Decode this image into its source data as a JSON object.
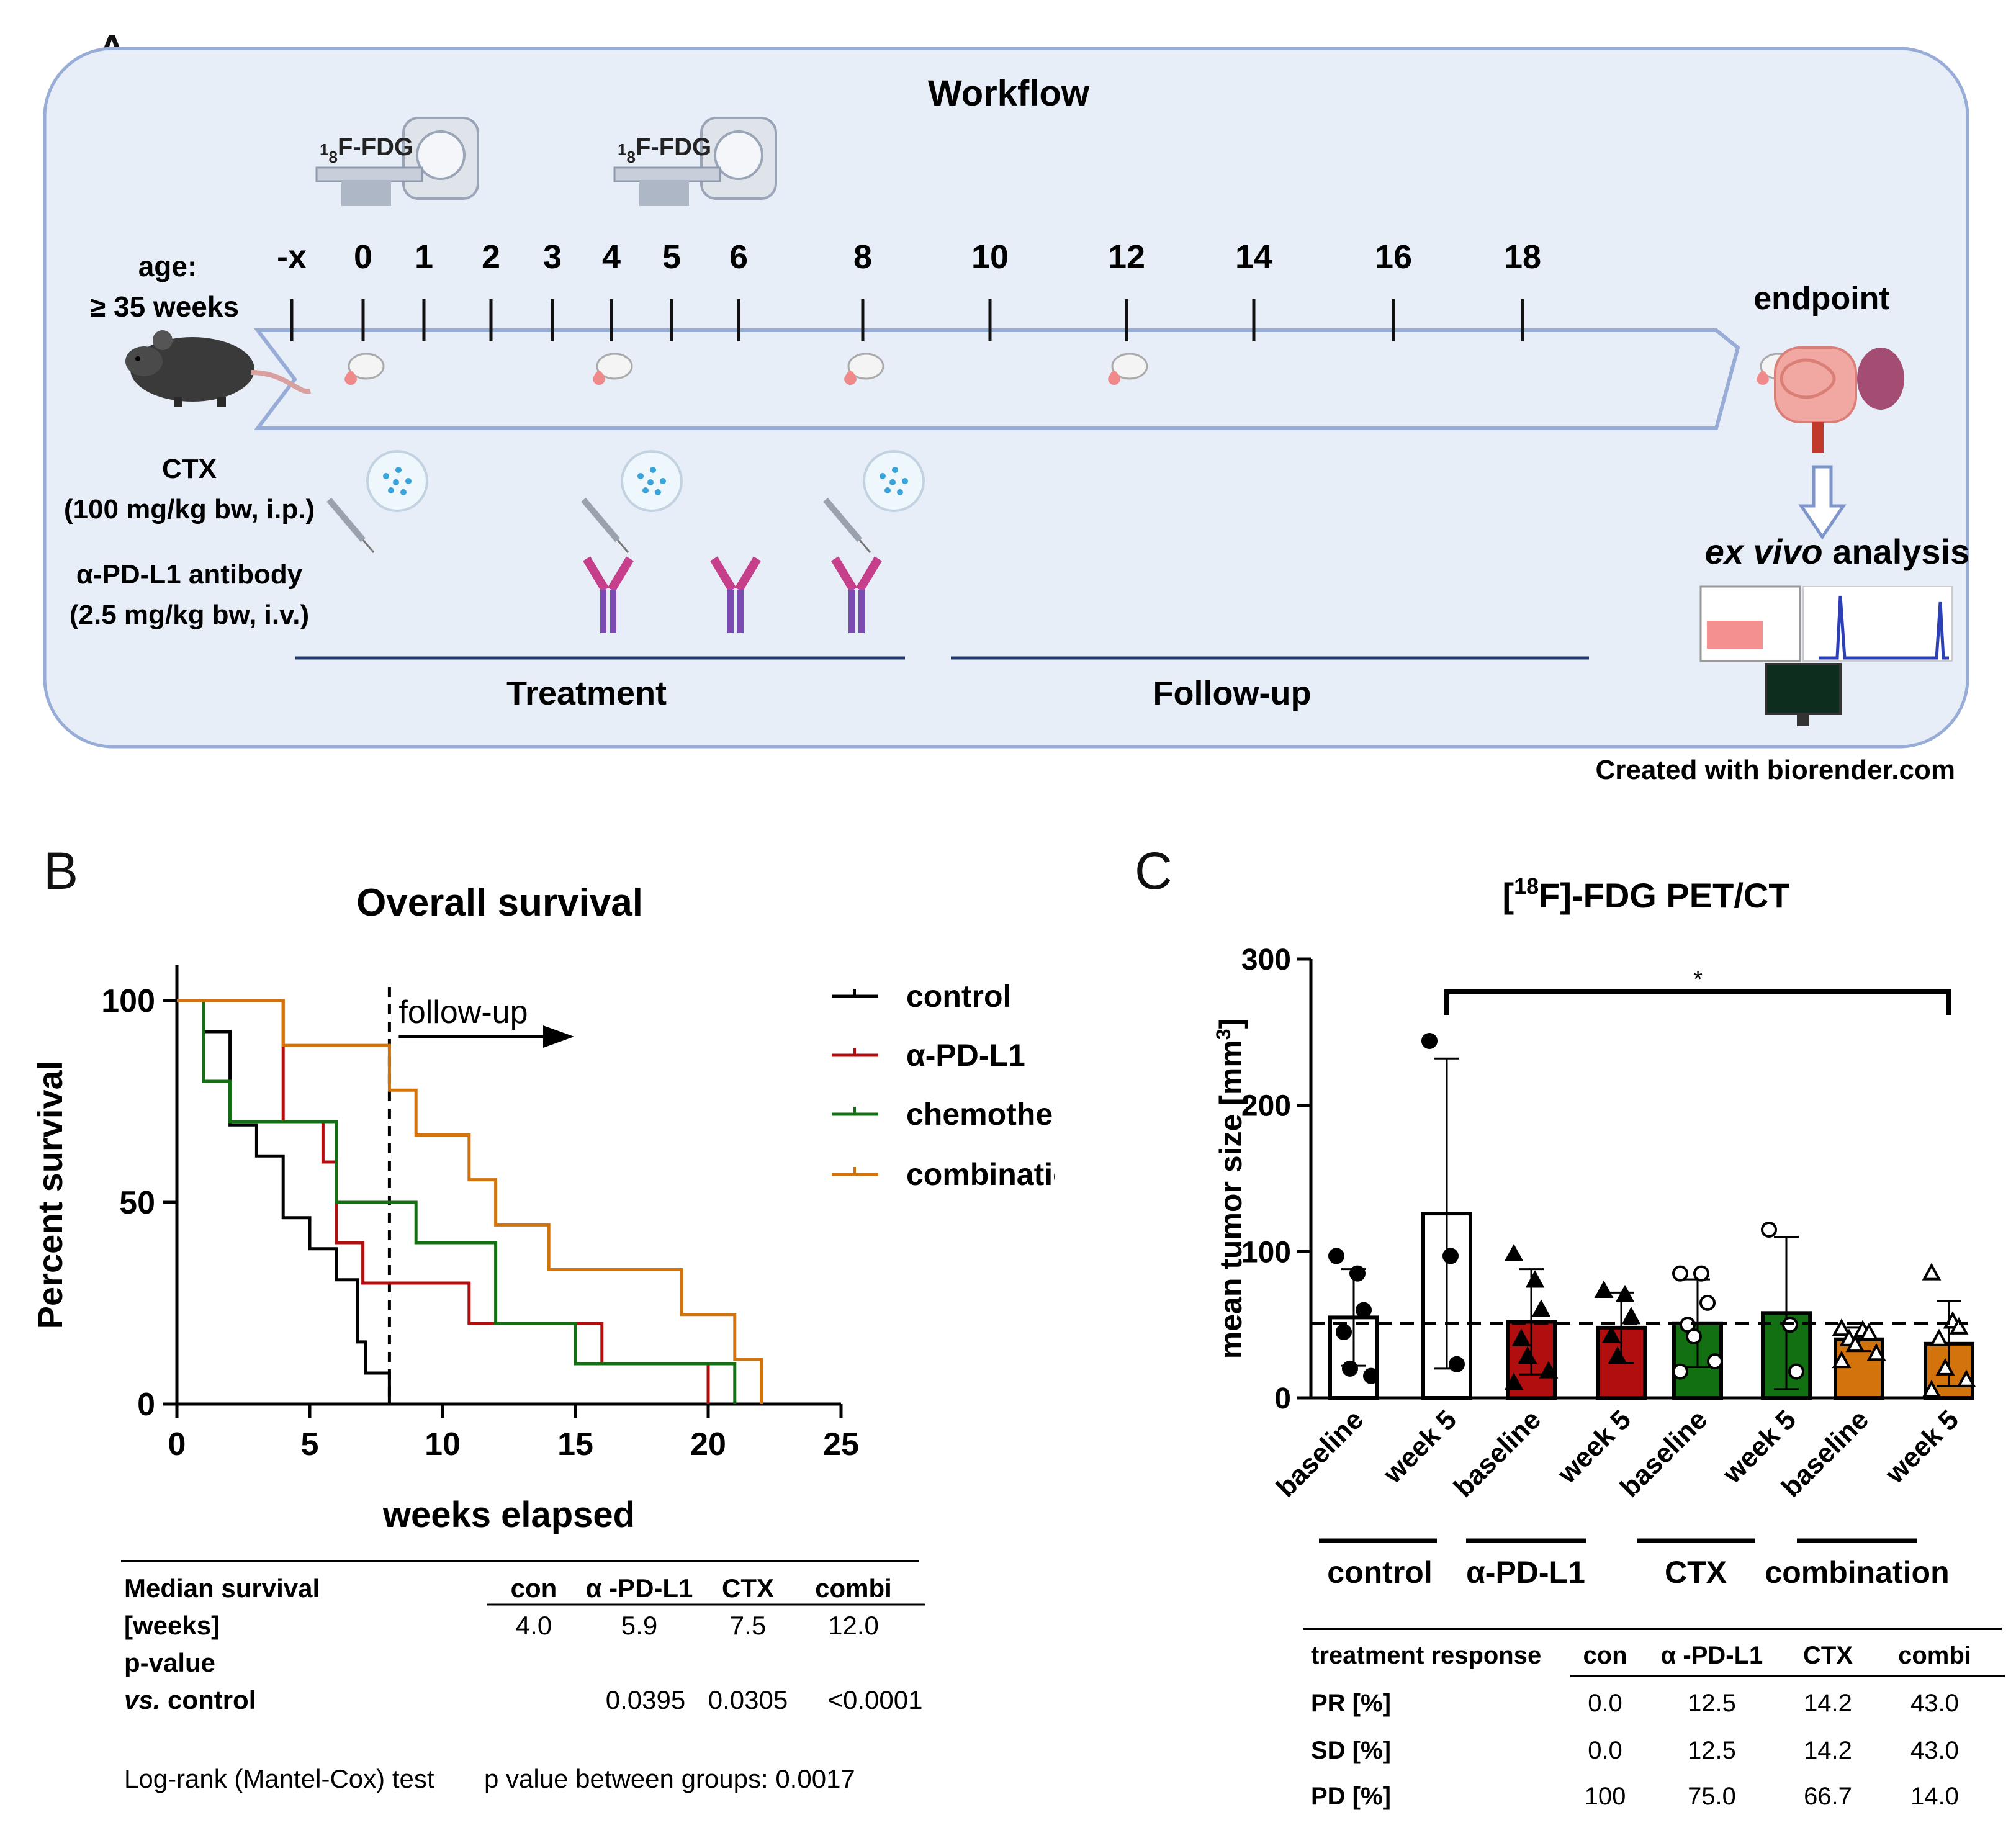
{
  "panel_labels": {
    "a": "A",
    "b": "B",
    "c": "C"
  },
  "colors": {
    "panel_bg": "#e8eef8",
    "panel_border": "#97acd6",
    "timeline": "#97acd6",
    "section_line": "#1f3a6b",
    "control": "#000000",
    "apdl1": "#b10f0f",
    "chemo": "#127012",
    "combination": "#d2730c"
  },
  "workflow": {
    "title": "Workflow",
    "pet_label_prefix": "1",
    "pet_label_sub": "8",
    "pet_label_main": "F-FDG",
    "age_label": "age:",
    "age_value": "≥ 35 weeks",
    "ticks": [
      "-x",
      "0",
      "1",
      "2",
      "3",
      "4",
      "5",
      "6",
      "8",
      "10",
      "12",
      "14",
      "16",
      "18"
    ],
    "endpoint": "endpoint",
    "ctx_label": "CTX",
    "ctx_dose": "(100 mg/kg bw, i.p.)",
    "apdl1_label": "α-PD-L1 antibody",
    "apdl1_dose": "(2.5 mg/kg bw, i.v.)",
    "treatment": "Treatment",
    "followup": "Follow-up",
    "exvivo_italic": "ex vivo",
    "exvivo_rest": " analysis",
    "credit": "Created with biorender.com"
  },
  "chart_data": [
    {
      "type": "line",
      "title": "Overall survival",
      "xlabel": "weeks elapsed",
      "ylabel": "Percent survival",
      "xlim": [
        0,
        25
      ],
      "ylim": [
        0,
        100
      ],
      "xticks": [
        "0",
        "5",
        "10",
        "15",
        "20",
        "25"
      ],
      "yticks": [
        "0",
        "50",
        "100"
      ],
      "annotation": "follow-up",
      "followup_week": 8,
      "series": [
        {
          "name": "control",
          "color": "#000000",
          "steps": [
            [
              0,
              100
            ],
            [
              1,
              92.3
            ],
            [
              2,
              69.2
            ],
            [
              3,
              61.5
            ],
            [
              4,
              46.2
            ],
            [
              5,
              38.5
            ],
            [
              6,
              30.8
            ],
            [
              6.8,
              15.4
            ],
            [
              7.1,
              7.7
            ],
            [
              8,
              0
            ]
          ]
        },
        {
          "name": "α-PD-L1",
          "color": "#b10f0f",
          "steps": [
            [
              0,
              100
            ],
            [
              4,
              70
            ],
            [
              5.5,
              60
            ],
            [
              6,
              40
            ],
            [
              7,
              30
            ],
            [
              11,
              20
            ],
            [
              16,
              10
            ],
            [
              20,
              0
            ]
          ]
        },
        {
          "name": "chemotherapy",
          "color": "#127012",
          "steps": [
            [
              0,
              100
            ],
            [
              1,
              80
            ],
            [
              2,
              70
            ],
            [
              6,
              50
            ],
            [
              9,
              40
            ],
            [
              12,
              20
            ],
            [
              15,
              10
            ],
            [
              21,
              0
            ]
          ]
        },
        {
          "name": "combination",
          "color": "#d2730c",
          "steps": [
            [
              0,
              100
            ],
            [
              4,
              88.9
            ],
            [
              8,
              77.8
            ],
            [
              9,
              66.7
            ],
            [
              11,
              55.6
            ],
            [
              12,
              44.4
            ],
            [
              14,
              33.3
            ],
            [
              19,
              22.2
            ],
            [
              21,
              11.1
            ],
            [
              22,
              0
            ]
          ]
        }
      ]
    },
    {
      "type": "bar",
      "title_prefix": "[",
      "title_sup": "18",
      "title_main": "F]-FDG PET/CT",
      "ylabel": "mean tumor size [mm",
      "ylabel_sup": "3",
      "ylabel_end": "]",
      "ylim": [
        0,
        300
      ],
      "yticks": [
        "0",
        "100",
        "200",
        "300"
      ],
      "dashed_reference": 51,
      "significance": "*",
      "categories": [
        "baseline",
        "week 5",
        "baseline",
        "week 5",
        "baseline",
        "week 5",
        "baseline",
        "week 5"
      ],
      "groups": [
        "control",
        "α-PD-L1",
        "CTX",
        "combination"
      ],
      "values": [
        55,
        126,
        52,
        48,
        51,
        58,
        40,
        37
      ],
      "error": [
        33,
        106,
        36,
        24,
        30,
        52,
        8,
        29
      ],
      "colors": [
        "#ffffff",
        "#ffffff",
        "#b10f0f",
        "#b10f0f",
        "#127012",
        "#127012",
        "#d2730c",
        "#d2730c"
      ],
      "markers": [
        "circle",
        "circle",
        "triangle",
        "triangle",
        "open-circle",
        "open-circle",
        "open-triangle",
        "open-triangle"
      ],
      "points": [
        [
          97,
          85,
          60,
          45,
          20,
          15
        ],
        [
          244,
          97,
          23
        ],
        [
          98,
          80,
          60,
          40,
          28,
          18,
          10
        ],
        [
          73,
          70,
          55,
          42,
          28
        ],
        [
          85,
          85,
          65,
          50,
          42,
          25,
          18
        ],
        [
          115,
          50,
          18
        ],
        [
          47,
          46,
          44,
          40,
          36,
          30,
          25
        ],
        [
          85,
          52,
          48,
          40,
          20,
          12,
          5
        ]
      ]
    }
  ],
  "survival_table": {
    "headers": [
      "Median survival",
      "con",
      "α -PD-L1",
      "CTX",
      "combi"
    ],
    "row1_label": "[weeks]",
    "row1_values": [
      "4.0",
      "5.9",
      "7.5",
      "12.0"
    ],
    "row2_label": "p-value",
    "row3_label_italic": "vs.",
    "row3_label_rest": " control",
    "row3_values": [
      "",
      "0.0395",
      "0.0305",
      "<0.0001"
    ],
    "footnote_left": "Log-rank (Mantel-Cox) test",
    "footnote_right": "p value between groups: 0.0017"
  },
  "response_table": {
    "headers": [
      "treatment response",
      "con",
      "α -PD-L1",
      "CTX",
      "combi"
    ],
    "rows": [
      {
        "label": "PR [%]",
        "values": [
          "0.0",
          "12.5",
          "14.2",
          "43.0"
        ]
      },
      {
        "label": "SD [%]",
        "values": [
          "0.0",
          "12.5",
          "14.2",
          "43.0"
        ]
      },
      {
        "label": "PD [%]",
        "values": [
          "100",
          "75.0",
          "66.7",
          "14.0"
        ]
      }
    ]
  }
}
